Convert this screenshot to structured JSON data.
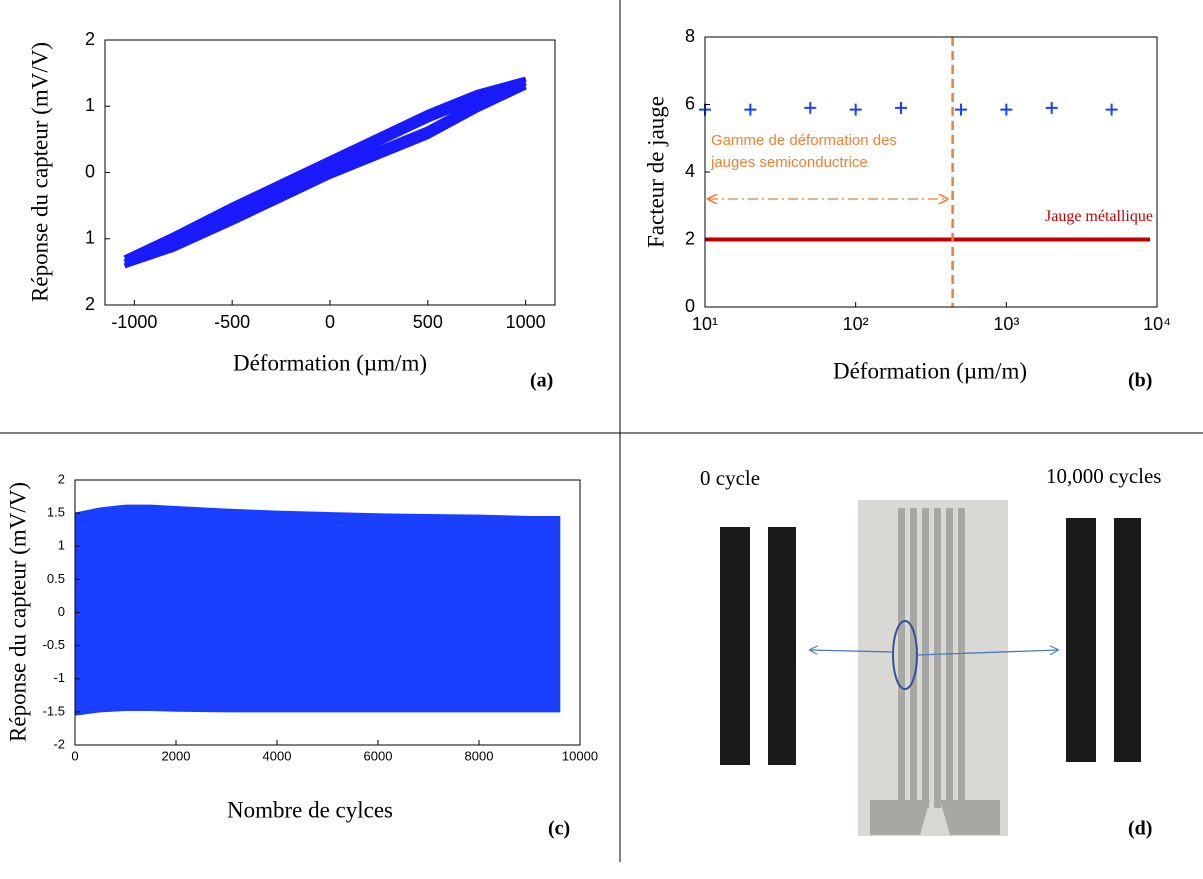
{
  "chart_data": [
    {
      "type": "line",
      "xlabel": "Déformation (µm/m)",
      "ylabel": "Réponse du capteur (mV/V)",
      "panel_label": "(a)",
      "xlim": [
        -1150,
        1150
      ],
      "xticks": [
        -1000,
        -500,
        0,
        500,
        1000
      ],
      "ylim": [
        -2,
        2
      ],
      "yticks": [
        {
          "value": -2,
          "label": "2"
        },
        {
          "value": -1,
          "label": "1"
        },
        0,
        1,
        2
      ],
      "series": [
        {
          "color": "#1a1aff",
          "x": [
            -1050,
            -800,
            -500,
            -250,
            0,
            250,
            500,
            750,
            1000,
            1000,
            750,
            500,
            250,
            0,
            -250,
            -500,
            -800,
            -1050
          ],
          "values": [
            -1.35,
            -1.0,
            -0.55,
            -0.2,
            0.15,
            0.5,
            0.85,
            1.15,
            1.35,
            1.35,
            1.0,
            0.6,
            0.3,
            0.0,
            -0.35,
            -0.7,
            -1.1,
            -1.35
          ]
        }
      ]
    },
    {
      "type": "scatter",
      "xlabel": "Déformation (µm/m)",
      "ylabel": "Facteur de jauge",
      "panel_label": "(b)",
      "xscale": "log",
      "xlim": [
        10,
        10000
      ],
      "xticks": [
        {
          "value": 10,
          "label": "10¹"
        },
        {
          "value": 100,
          "label": "10²"
        },
        {
          "value": 1000,
          "label": "10³"
        },
        {
          "value": 10000,
          "label": "10⁴"
        }
      ],
      "ylim": [
        0,
        8
      ],
      "yticks": [
        0,
        2,
        4,
        6,
        8
      ],
      "series": [
        {
          "color": "#1a3fff",
          "marker": "+",
          "x": [
            10,
            20,
            50,
            100,
            200,
            500,
            1000,
            2000,
            5000
          ],
          "values": [
            5.85,
            5.85,
            5.9,
            5.85,
            5.9,
            5.85,
            5.85,
            5.9,
            5.85
          ]
        },
        {
          "name": "Jauge métallique",
          "color": "#c00000",
          "marker": "line",
          "x": [
            10,
            9000
          ],
          "values": [
            2,
            2
          ]
        }
      ],
      "annotations": {
        "vline_x": 440,
        "arrow_y": 3.2,
        "color": "#f08030",
        "text": [
          "Gamme de déformation des",
          "jauges semiconductrice"
        ]
      }
    },
    {
      "type": "area",
      "xlabel": "Nombre de cylces",
      "ylabel": "Réponse du capteur (mV/V)",
      "panel_label": "(c)",
      "xlim": [
        0,
        10000
      ],
      "xticks": [
        0,
        2000,
        4000,
        6000,
        8000,
        10000
      ],
      "ylim": [
        -2,
        2
      ],
      "yticks": [
        -2,
        -1.5,
        -1,
        -0.5,
        0,
        0.5,
        1,
        1.5,
        2
      ],
      "color": "#1a3fff",
      "x": [
        0,
        500,
        1000,
        1500,
        2000,
        3000,
        4000,
        5000,
        6000,
        7000,
        8000,
        9000,
        9600
      ],
      "upper": [
        1.5,
        1.58,
        1.62,
        1.62,
        1.6,
        1.56,
        1.53,
        1.51,
        1.49,
        1.48,
        1.47,
        1.45,
        1.45
      ],
      "lower": [
        -1.55,
        -1.5,
        -1.48,
        -1.48,
        -1.49,
        -1.5,
        -1.5,
        -1.5,
        -1.5,
        -1.5,
        -1.5,
        -1.5,
        -1.5
      ]
    }
  ],
  "panel_d": {
    "left_label": "0 cycle",
    "right_label": "10,000 cycles",
    "panel_label": "(d)"
  }
}
